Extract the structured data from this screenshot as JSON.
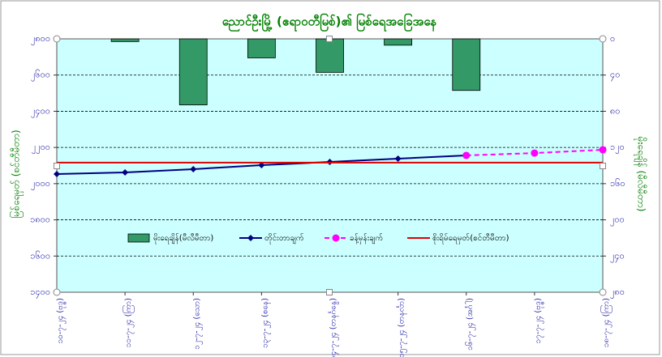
{
  "chart_data": {
    "type": "combo",
    "title": "ညောင်ဦးမြို့ (ဧရာဝတီမြစ်)၏ မြစ်ရေအခြေအနေ",
    "y_label": "မြစ်ရေမှတ် (စင်တီမီတာ)",
    "y2_label": "မိုးရေချိန် (မီလီမီတာ)",
    "categories": [
      "၁၀-၇-၂၄ (ဗုဒ္ဓ)",
      "၁၁-၇-၂၄ (ကြာ)",
      "၁၂-၇-၂၄ (သော)",
      "၁၃-၇-၂၄ (စနေ)",
      "၁၄-၇-၂၄ (တနင်္ဂနွေ)",
      "၁၅-၇-၂၄ (တနင်္လာ)",
      "၁၆-၇-၂၄ (အင်္ဂါ)",
      "၁၇-၇-၂၄ (ဗုဒ္ဓ)",
      "၁၈-၇-၂၄ (ကြာ)"
    ],
    "ylim": [
      1400,
      2800
    ],
    "yticks": [
      {
        "value": 2800,
        "label": "၂၈၀၀"
      },
      {
        "value": 2600,
        "label": "၂၆၀၀"
      },
      {
        "value": 2400,
        "label": "၂၄၀၀"
      },
      {
        "value": 2200,
        "label": "၂၂၀၀"
      },
      {
        "value": 2000,
        "label": "၂၀၀၀"
      },
      {
        "value": 1800,
        "label": "၁၈၀၀"
      },
      {
        "value": 1600,
        "label": "၁၆၀၀"
      },
      {
        "value": 1400,
        "label": "၁၄၀၀"
      }
    ],
    "y2lim": [
      0,
      280
    ],
    "y2_reversed": true,
    "y2ticks": [
      {
        "value": 0,
        "label": "၀"
      },
      {
        "value": 40,
        "label": "၄၀"
      },
      {
        "value": 80,
        "label": "၈၀"
      },
      {
        "value": 120,
        "label": "၁၂၀"
      },
      {
        "value": 160,
        "label": "၁၆၀"
      },
      {
        "value": 200,
        "label": "၂၀၀"
      },
      {
        "value": 240,
        "label": "၂၄၀"
      },
      {
        "value": 280,
        "label": "၂၈၀"
      }
    ],
    "grid": true,
    "series": [
      {
        "name": "မိုးရေချိန်(မီလီမီတာ)",
        "type": "bar",
        "axis": "y2",
        "color": "#339966",
        "values": [
          0,
          3,
          73,
          21,
          37,
          7,
          57,
          null,
          null
        ]
      },
      {
        "name": "တိုင်းတာချက်",
        "type": "line",
        "color": "#000080",
        "marker": "diamond",
        "values": [
          2053,
          2062,
          2080,
          2102,
          2120,
          2138,
          2156,
          null,
          null
        ]
      },
      {
        "name": "ခန့်မှန်းချက်",
        "type": "line",
        "color": "#ff00ff",
        "marker": "circle",
        "dashed": true,
        "values": [
          null,
          null,
          null,
          null,
          null,
          null,
          2156,
          2169,
          2187
        ]
      },
      {
        "name": "စိုးရိမ်ရေမှတ်(စင်တီမီတာ)",
        "type": "line",
        "color": "#e00000",
        "values": [
          2116,
          2116,
          2116,
          2116,
          2116,
          2116,
          2116,
          2116,
          2116
        ]
      }
    ]
  }
}
